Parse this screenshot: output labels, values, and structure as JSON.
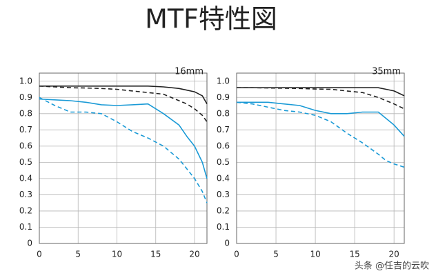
{
  "title": "MTF特性図",
  "watermark": "头条 @任吉的云吹",
  "chart_data": [
    {
      "type": "line",
      "subtitle": "16mm",
      "x": [
        0,
        2,
        4,
        6,
        8,
        10,
        12,
        14,
        16,
        18,
        19,
        20,
        21,
        21.6
      ],
      "xlim": [
        0,
        21.6
      ],
      "xticks": [
        0,
        5,
        10,
        15,
        20
      ],
      "ylim": [
        0,
        1.05
      ],
      "yticks": [
        0,
        0.1,
        0.2,
        0.3,
        0.4,
        0.5,
        0.6,
        0.7,
        0.8,
        0.9,
        {
          "value": 1,
          "label": "1.0"
        }
      ],
      "grid": true,
      "series": [
        {
          "color": "#222222",
          "dash": false,
          "values": [
            0.97,
            0.97,
            0.97,
            0.97,
            0.97,
            0.97,
            0.97,
            0.97,
            0.965,
            0.955,
            0.945,
            0.935,
            0.91,
            0.86
          ]
        },
        {
          "color": "#222222",
          "dash": true,
          "values": [
            0.97,
            0.965,
            0.96,
            0.958,
            0.955,
            0.95,
            0.94,
            0.93,
            0.92,
            0.88,
            0.86,
            0.83,
            0.79,
            0.75
          ]
        },
        {
          "color": "#1a9ad6",
          "dash": false,
          "values": [
            0.89,
            0.885,
            0.88,
            0.87,
            0.855,
            0.85,
            0.855,
            0.86,
            0.8,
            0.73,
            0.66,
            0.6,
            0.5,
            0.4
          ]
        },
        {
          "color": "#1a9ad6",
          "dash": true,
          "values": [
            0.9,
            0.85,
            0.81,
            0.81,
            0.8,
            0.75,
            0.69,
            0.65,
            0.6,
            0.52,
            0.46,
            0.4,
            0.32,
            0.25
          ]
        }
      ]
    },
    {
      "type": "line",
      "subtitle": "35mm",
      "x": [
        0,
        2,
        4,
        6,
        8,
        10,
        12,
        14,
        16,
        18,
        19,
        20,
        21.3
      ],
      "xlim": [
        0,
        21.3
      ],
      "xticks": [
        0,
        5,
        10,
        15,
        20
      ],
      "ylim": [
        0,
        1.05
      ],
      "yticks": [
        0,
        0.1,
        0.2,
        0.3,
        0.4,
        0.5,
        0.6,
        0.7,
        0.8,
        0.9,
        {
          "value": 1,
          "label": "1.0"
        }
      ],
      "grid": true,
      "series": [
        {
          "color": "#222222",
          "dash": false,
          "values": [
            0.96,
            0.96,
            0.96,
            0.96,
            0.96,
            0.96,
            0.96,
            0.96,
            0.96,
            0.96,
            0.95,
            0.94,
            0.91
          ]
        },
        {
          "color": "#222222",
          "dash": true,
          "values": [
            0.96,
            0.96,
            0.958,
            0.957,
            0.955,
            0.952,
            0.95,
            0.94,
            0.93,
            0.9,
            0.88,
            0.86,
            0.83
          ]
        },
        {
          "color": "#1a9ad6",
          "dash": false,
          "values": [
            0.87,
            0.87,
            0.87,
            0.86,
            0.85,
            0.82,
            0.8,
            0.8,
            0.81,
            0.81,
            0.77,
            0.73,
            0.66
          ]
        },
        {
          "color": "#1a9ad6",
          "dash": true,
          "values": [
            0.87,
            0.86,
            0.84,
            0.82,
            0.81,
            0.79,
            0.75,
            0.68,
            0.62,
            0.55,
            0.51,
            0.49,
            0.47
          ]
        }
      ]
    }
  ]
}
